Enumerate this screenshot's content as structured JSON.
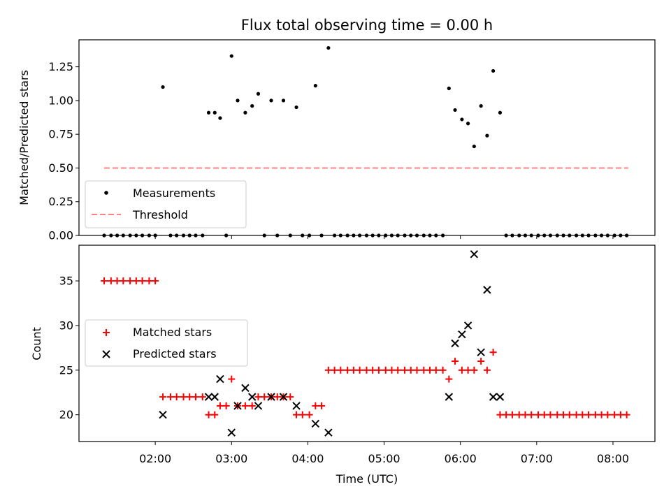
{
  "chart_data": [
    {
      "type": "scatter",
      "title": "Flux total observing time = 0.00 h",
      "xlabel": "",
      "ylabel": "Matched/Predicted stars",
      "ylim": [
        0,
        1.45
      ],
      "yticks": [
        0.0,
        0.25,
        0.5,
        0.75,
        1.0,
        1.25
      ],
      "ytick_labels": [
        "0.00",
        "0.25",
        "0.50",
        "0.75",
        "1.00",
        "1.25"
      ],
      "xtick_labels": [],
      "legend_position": "lower-left",
      "series": [
        {
          "name": "Measurements",
          "color": "#000000",
          "marker": "dot",
          "points": [
            [
              1.33,
              0
            ],
            [
              1.42,
              0
            ],
            [
              1.5,
              0
            ],
            [
              1.58,
              0
            ],
            [
              1.67,
              0
            ],
            [
              1.75,
              0
            ],
            [
              1.83,
              0
            ],
            [
              1.92,
              0
            ],
            [
              2.0,
              0
            ],
            [
              2.1,
              1.1
            ],
            [
              2.2,
              0
            ],
            [
              2.28,
              0
            ],
            [
              2.37,
              0
            ],
            [
              2.45,
              0
            ],
            [
              2.53,
              0
            ],
            [
              2.62,
              0
            ],
            [
              2.7,
              0.91
            ],
            [
              2.78,
              0.91
            ],
            [
              2.85,
              0.87
            ],
            [
              2.93,
              0
            ],
            [
              3.0,
              1.33
            ],
            [
              3.08,
              1.0
            ],
            [
              3.18,
              0.91
            ],
            [
              3.27,
              0.96
            ],
            [
              3.35,
              1.05
            ],
            [
              3.43,
              0
            ],
            [
              3.52,
              1.0
            ],
            [
              3.6,
              0
            ],
            [
              3.68,
              1.0
            ],
            [
              3.77,
              0
            ],
            [
              3.85,
              0.95
            ],
            [
              3.93,
              0
            ],
            [
              4.02,
              0
            ],
            [
              4.1,
              1.11
            ],
            [
              4.18,
              0
            ],
            [
              4.27,
              1.39
            ],
            [
              4.35,
              0
            ],
            [
              4.43,
              0
            ],
            [
              4.52,
              0
            ],
            [
              4.6,
              0
            ],
            [
              4.68,
              0
            ],
            [
              4.77,
              0
            ],
            [
              4.85,
              0
            ],
            [
              4.93,
              0
            ],
            [
              5.02,
              0
            ],
            [
              5.1,
              0
            ],
            [
              5.18,
              0
            ],
            [
              5.27,
              0
            ],
            [
              5.35,
              0
            ],
            [
              5.43,
              0
            ],
            [
              5.52,
              0
            ],
            [
              5.6,
              0
            ],
            [
              5.68,
              0
            ],
            [
              5.77,
              0
            ],
            [
              5.85,
              1.09
            ],
            [
              5.93,
              0.93
            ],
            [
              6.02,
              0.86
            ],
            [
              6.1,
              0.83
            ],
            [
              6.18,
              0.66
            ],
            [
              6.27,
              0.96
            ],
            [
              6.35,
              0.74
            ],
            [
              6.43,
              1.22
            ],
            [
              6.52,
              0.91
            ],
            [
              6.6,
              0
            ],
            [
              6.68,
              0
            ],
            [
              6.77,
              0
            ],
            [
              6.85,
              0
            ],
            [
              6.93,
              0
            ],
            [
              7.02,
              0
            ],
            [
              7.1,
              0
            ],
            [
              7.18,
              0
            ],
            [
              7.27,
              0
            ],
            [
              7.35,
              0
            ],
            [
              7.43,
              0
            ],
            [
              7.52,
              0
            ],
            [
              7.6,
              0
            ],
            [
              7.68,
              0
            ],
            [
              7.77,
              0
            ],
            [
              7.85,
              0
            ],
            [
              7.93,
              0
            ],
            [
              8.02,
              0
            ],
            [
              8.1,
              0
            ],
            [
              8.18,
              0
            ]
          ]
        },
        {
          "name": "Threshold",
          "color": "#ff8080",
          "marker": "dashed-line",
          "points": [
            [
              1.33,
              0.5
            ],
            [
              8.2,
              0.5
            ]
          ]
        }
      ]
    },
    {
      "type": "scatter",
      "title": "",
      "xlabel": "Time (UTC)",
      "ylabel": "Count",
      "xlim": [
        1.0,
        8.55
      ],
      "ylim": [
        17,
        39
      ],
      "yticks": [
        20,
        25,
        30,
        35
      ],
      "ytick_labels": [
        "20",
        "25",
        "30",
        "35"
      ],
      "xticks": [
        2,
        3,
        4,
        5,
        6,
        7,
        8
      ],
      "xtick_labels": [
        "02:00",
        "03:00",
        "04:00",
        "05:00",
        "06:00",
        "07:00",
        "08:00"
      ],
      "legend_position": "center-left",
      "series": [
        {
          "name": "Matched stars",
          "color": "#ff0000",
          "marker": "plus",
          "points": [
            [
              1.33,
              35
            ],
            [
              1.42,
              35
            ],
            [
              1.5,
              35
            ],
            [
              1.58,
              35
            ],
            [
              1.67,
              35
            ],
            [
              1.75,
              35
            ],
            [
              1.83,
              35
            ],
            [
              1.92,
              35
            ],
            [
              2.0,
              35
            ],
            [
              2.1,
              22
            ],
            [
              2.2,
              22
            ],
            [
              2.28,
              22
            ],
            [
              2.37,
              22
            ],
            [
              2.45,
              22
            ],
            [
              2.53,
              22
            ],
            [
              2.62,
              22
            ],
            [
              2.7,
              20
            ],
            [
              2.78,
              20
            ],
            [
              2.85,
              21
            ],
            [
              2.93,
              21
            ],
            [
              3.0,
              24
            ],
            [
              3.08,
              21
            ],
            [
              3.18,
              21
            ],
            [
              3.27,
              21
            ],
            [
              3.35,
              22
            ],
            [
              3.43,
              22
            ],
            [
              3.52,
              22
            ],
            [
              3.6,
              22
            ],
            [
              3.68,
              22
            ],
            [
              3.77,
              22
            ],
            [
              3.85,
              20
            ],
            [
              3.93,
              20
            ],
            [
              4.02,
              20
            ],
            [
              4.1,
              21
            ],
            [
              4.18,
              21
            ],
            [
              4.27,
              25
            ],
            [
              4.35,
              25
            ],
            [
              4.43,
              25
            ],
            [
              4.52,
              25
            ],
            [
              4.6,
              25
            ],
            [
              4.68,
              25
            ],
            [
              4.77,
              25
            ],
            [
              4.85,
              25
            ],
            [
              4.93,
              25
            ],
            [
              5.02,
              25
            ],
            [
              5.1,
              25
            ],
            [
              5.18,
              25
            ],
            [
              5.27,
              25
            ],
            [
              5.35,
              25
            ],
            [
              5.43,
              25
            ],
            [
              5.52,
              25
            ],
            [
              5.6,
              25
            ],
            [
              5.68,
              25
            ],
            [
              5.77,
              25
            ],
            [
              5.85,
              24
            ],
            [
              5.93,
              26
            ],
            [
              6.02,
              25
            ],
            [
              6.1,
              25
            ],
            [
              6.18,
              25
            ],
            [
              6.27,
              26
            ],
            [
              6.35,
              25
            ],
            [
              6.43,
              27
            ],
            [
              6.52,
              20
            ],
            [
              6.6,
              20
            ],
            [
              6.68,
              20
            ],
            [
              6.77,
              20
            ],
            [
              6.85,
              20
            ],
            [
              6.93,
              20
            ],
            [
              7.02,
              20
            ],
            [
              7.1,
              20
            ],
            [
              7.18,
              20
            ],
            [
              7.27,
              20
            ],
            [
              7.35,
              20
            ],
            [
              7.43,
              20
            ],
            [
              7.52,
              20
            ],
            [
              7.6,
              20
            ],
            [
              7.68,
              20
            ],
            [
              7.77,
              20
            ],
            [
              7.85,
              20
            ],
            [
              7.93,
              20
            ],
            [
              8.02,
              20
            ],
            [
              8.1,
              20
            ],
            [
              8.18,
              20
            ]
          ]
        },
        {
          "name": "Predicted stars",
          "color": "#000000",
          "marker": "x",
          "points": [
            [
              2.1,
              20
            ],
            [
              2.7,
              22
            ],
            [
              2.78,
              22
            ],
            [
              2.85,
              24
            ],
            [
              3.0,
              18
            ],
            [
              3.08,
              21
            ],
            [
              3.18,
              23
            ],
            [
              3.27,
              22
            ],
            [
              3.35,
              21
            ],
            [
              3.52,
              22
            ],
            [
              3.68,
              22
            ],
            [
              3.85,
              21
            ],
            [
              4.1,
              19
            ],
            [
              4.27,
              18
            ],
            [
              5.85,
              22
            ],
            [
              5.93,
              28
            ],
            [
              6.02,
              29
            ],
            [
              6.1,
              30
            ],
            [
              6.18,
              38
            ],
            [
              6.27,
              27
            ],
            [
              6.35,
              34
            ],
            [
              6.43,
              22
            ],
            [
              6.52,
              22
            ]
          ]
        }
      ]
    }
  ]
}
